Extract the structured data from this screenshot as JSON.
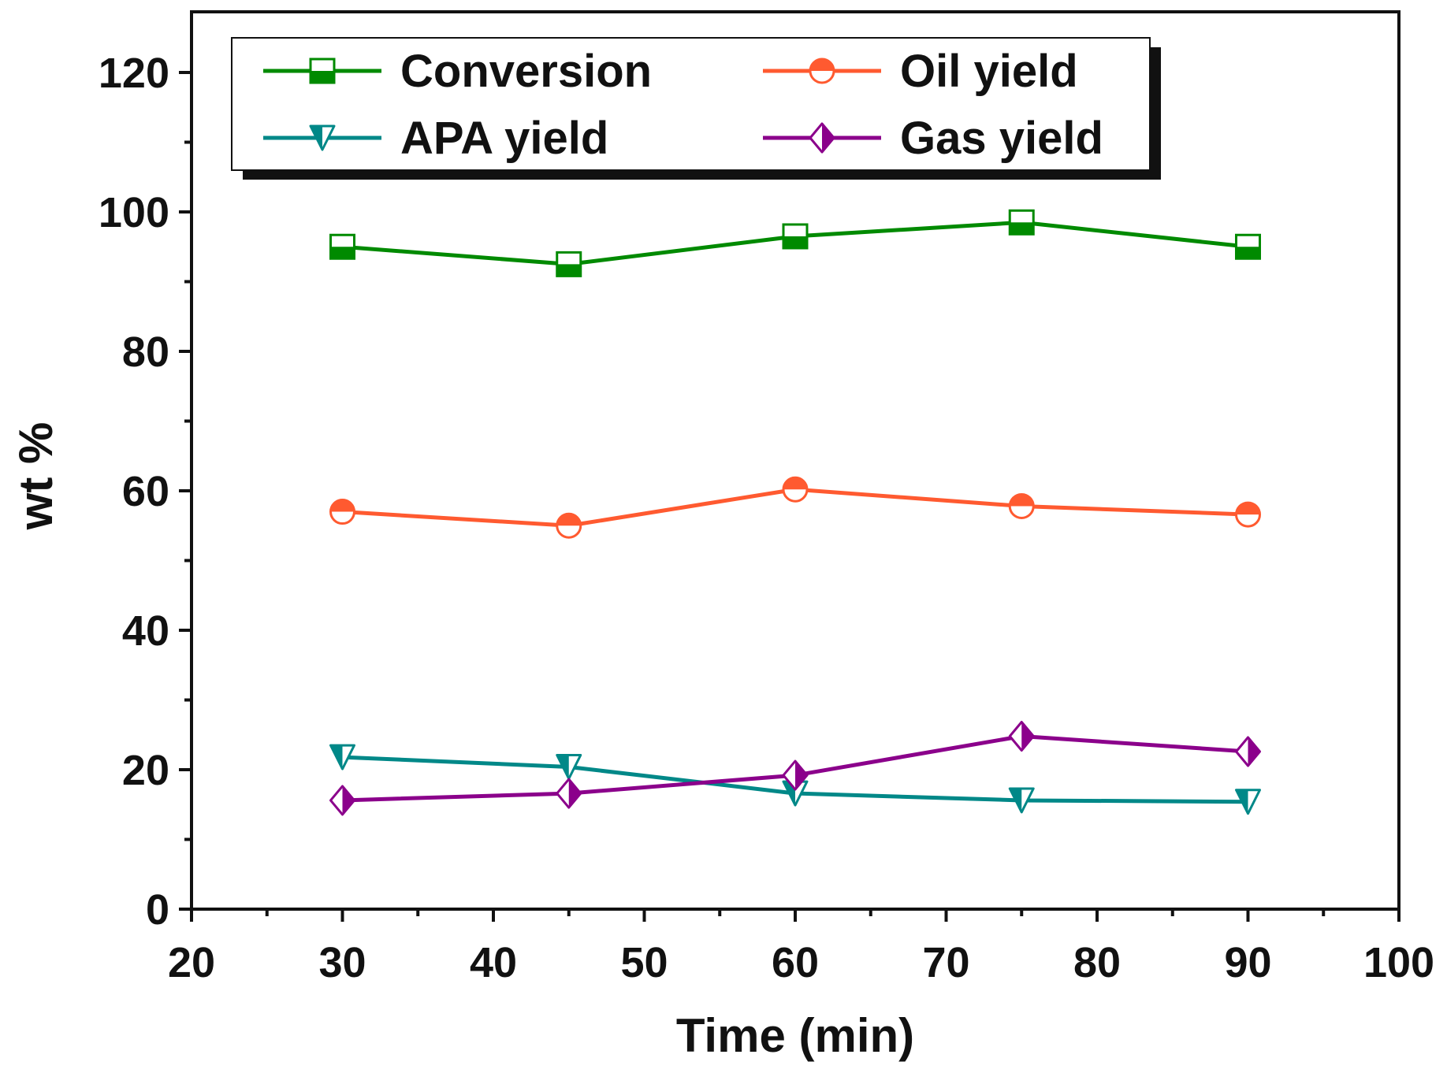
{
  "chart_data": {
    "type": "line",
    "title": "",
    "xlabel": "Time (min)",
    "ylabel": "wt %",
    "xlim": [
      20,
      100
    ],
    "ylim": [
      0,
      130
    ],
    "xticks": [
      20,
      30,
      40,
      50,
      60,
      70,
      80,
      90,
      100
    ],
    "yticks": [
      0,
      20,
      40,
      60,
      80,
      100,
      120
    ],
    "x": [
      30,
      45,
      60,
      75,
      90
    ],
    "legend_position": "top-left",
    "series": [
      {
        "name": "Conversion",
        "values": [
          95,
          92.5,
          96.5,
          98.5,
          95
        ],
        "color": "#008a00",
        "marker": "square"
      },
      {
        "name": "Oil yield",
        "values": [
          57,
          55,
          60.2,
          57.8,
          56.6
        ],
        "color": "#ff5a30",
        "marker": "circle"
      },
      {
        "name": "APA yield",
        "values": [
          21.8,
          20.4,
          16.6,
          15.6,
          15.4
        ],
        "color": "#008888",
        "marker": "triangle-down"
      },
      {
        "name": "Gas yield",
        "values": [
          15.6,
          16.6,
          19.2,
          24.8,
          22.6
        ],
        "color": "#8b008b",
        "marker": "diamond"
      }
    ]
  }
}
